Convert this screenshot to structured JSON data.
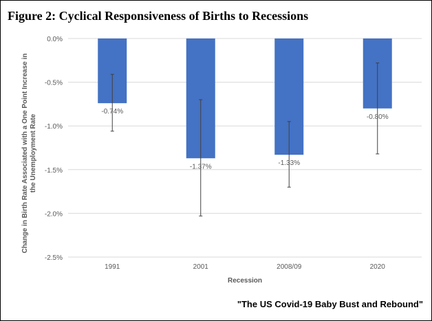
{
  "title": "Figure 2: Cyclical Responsiveness of Births to Recessions",
  "footer": "\"The US Covid-19 Baby Bust and Rebound\"",
  "colors": {
    "bar": "#4472c4",
    "grid": "#d9d9d9",
    "axis_text": "#595959",
    "error_bar": "#404040"
  },
  "chart_data": {
    "type": "bar",
    "title": "Figure 2: Cyclical Responsiveness of Births to Recessions",
    "xlabel": "Recession",
    "ylabel": "Change in Birth Rate Associated with a One Point Increase in the Unemployment Rate",
    "categories": [
      "1991",
      "2001",
      "2008/09",
      "2020"
    ],
    "values": [
      -0.74,
      -1.37,
      -1.33,
      -0.8
    ],
    "data_labels": [
      "-0.74%",
      "-1.37%",
      "-1.33%",
      "-0.80%"
    ],
    "error_bars": [
      {
        "low": -1.06,
        "high": -0.41
      },
      {
        "low": -2.03,
        "high": -0.7
      },
      {
        "low": -1.7,
        "high": -0.95
      },
      {
        "low": -1.32,
        "high": -0.28
      }
    ],
    "ylim": [
      -2.5,
      0
    ],
    "yticks": [
      0,
      -0.5,
      -1.0,
      -1.5,
      -2.0,
      -2.5
    ],
    "ytick_labels": [
      "0.0%",
      "-0.5%",
      "-1.0%",
      "-1.5%",
      "-2.0%",
      "-2.5%"
    ],
    "grid": true,
    "legend": "none"
  }
}
